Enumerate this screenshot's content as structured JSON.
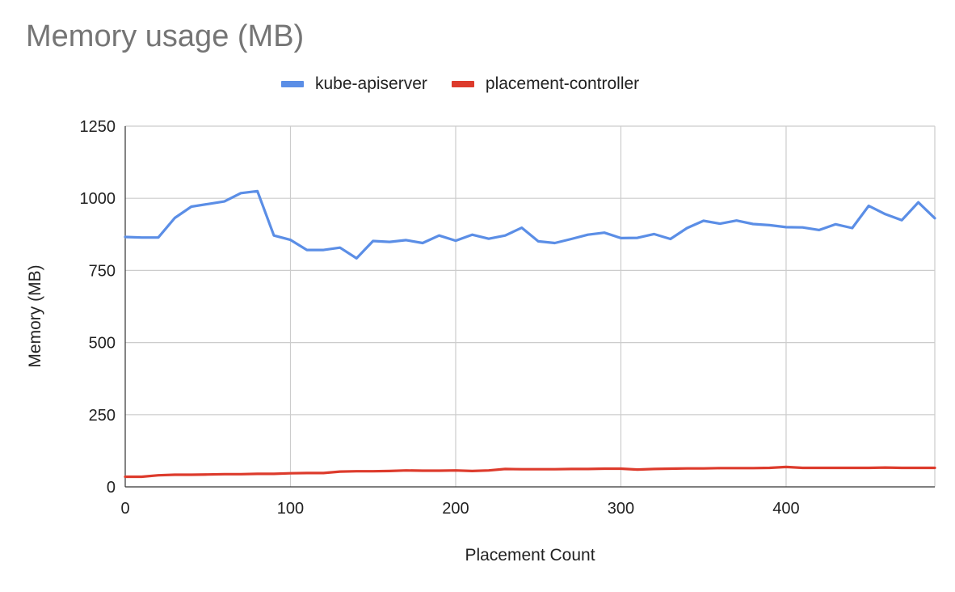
{
  "chart_data": {
    "type": "line",
    "title": "Memory usage (MB)",
    "xlabel": "Placement Count",
    "ylabel": "Memory (MB)",
    "xlim": [
      0,
      490
    ],
    "ylim": [
      0,
      1250
    ],
    "x_ticks": [
      0,
      100,
      200,
      300,
      400
    ],
    "y_ticks": [
      0,
      250,
      500,
      750,
      1000,
      1250
    ],
    "grid": true,
    "legend_position": "top",
    "x": [
      0,
      10,
      20,
      30,
      40,
      50,
      60,
      70,
      80,
      90,
      100,
      110,
      120,
      130,
      140,
      150,
      160,
      170,
      180,
      190,
      200,
      210,
      220,
      230,
      240,
      250,
      260,
      270,
      280,
      290,
      300,
      310,
      320,
      330,
      340,
      350,
      360,
      370,
      380,
      390,
      400,
      410,
      420,
      430,
      440,
      450,
      460,
      470,
      480,
      490
    ],
    "series": [
      {
        "name": "kube-apiserver",
        "color": "#5b8ee6",
        "values": [
          866,
          864,
          864,
          932,
          971,
          980,
          989,
          1018,
          1025,
          871,
          856,
          821,
          821,
          829,
          792,
          852,
          849,
          855,
          845,
          871,
          853,
          874,
          860,
          871,
          898,
          851,
          845,
          859,
          874,
          881,
          862,
          863,
          876,
          859,
          897,
          922,
          912,
          923,
          911,
          907,
          900,
          899,
          890,
          910,
          897,
          974,
          945,
          924,
          986,
          931
        ]
      },
      {
        "name": "placement-controller",
        "color": "#dd3b2c",
        "values": [
          35,
          35,
          40,
          42,
          42,
          43,
          44,
          44,
          45,
          45,
          47,
          48,
          48,
          53,
          54,
          54,
          55,
          57,
          56,
          56,
          57,
          55,
          57,
          62,
          61,
          61,
          61,
          62,
          62,
          63,
          63,
          60,
          62,
          63,
          64,
          64,
          65,
          65,
          65,
          66,
          69,
          66,
          66,
          66,
          66,
          66,
          67,
          66,
          66,
          66
        ]
      }
    ]
  }
}
